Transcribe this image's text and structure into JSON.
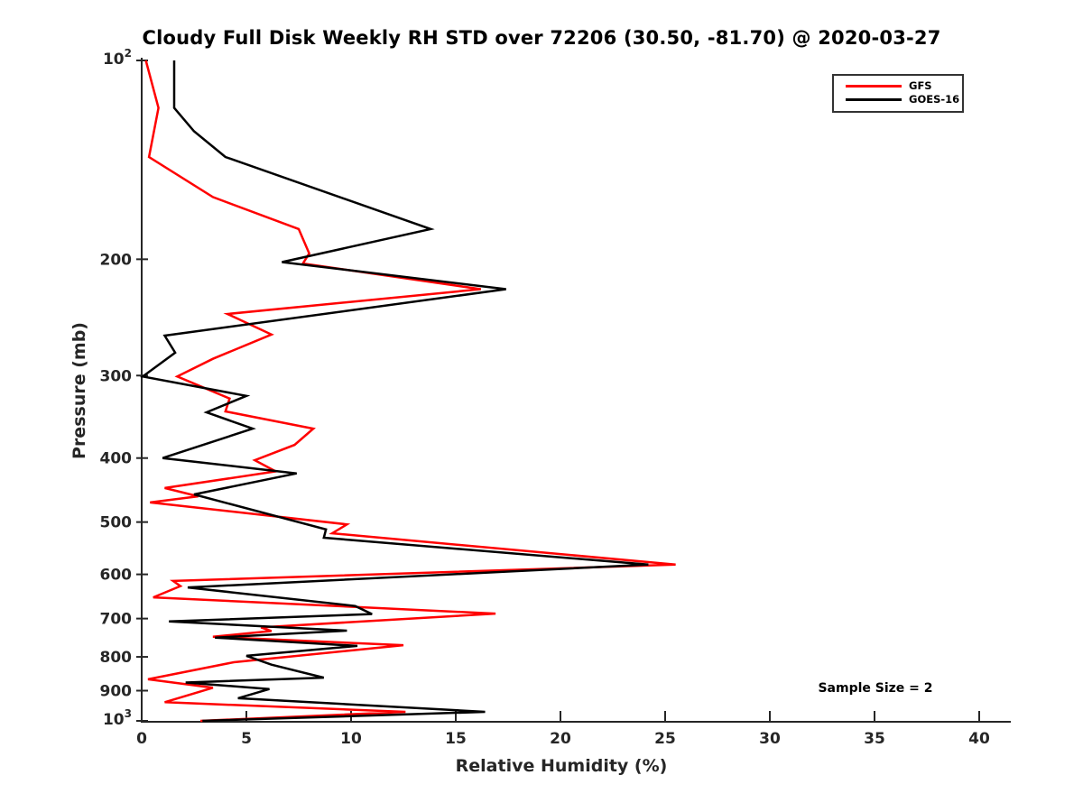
{
  "chart_data": {
    "type": "line",
    "title": "Cloudy Full Disk Weekly RH STD over 72206 (30.50, -81.70) @ 2020-03-27",
    "xlabel": "Relative Humidity (%)",
    "ylabel": "Pressure (mb)",
    "annotation": "Sample Size = 2",
    "sample_size": 2,
    "station": "72206",
    "lat": "30.50",
    "lon": "-81.70",
    "date": "2020-03-27",
    "x_axis": {
      "min": 0,
      "max": 41.5,
      "ticks": [
        0,
        5,
        10,
        15,
        20,
        25,
        30,
        35,
        40
      ],
      "grid": false
    },
    "y_axis": {
      "scale": "log",
      "inverted": true,
      "min": 100,
      "max": 1000,
      "grid": false,
      "ticks": [
        {
          "v": 100,
          "label": "10",
          "exp": "2"
        },
        {
          "v": 200,
          "label": "200"
        },
        {
          "v": 300,
          "label": "300"
        },
        {
          "v": 400,
          "label": "400"
        },
        {
          "v": 500,
          "label": "500"
        },
        {
          "v": 600,
          "label": "600"
        },
        {
          "v": 700,
          "label": "700"
        },
        {
          "v": 800,
          "label": "800"
        },
        {
          "v": 900,
          "label": "900"
        },
        {
          "v": 1000,
          "label": "10",
          "exp": "3"
        }
      ]
    },
    "legend_position": "top-right",
    "axis_color": "#262626",
    "series": [
      {
        "name": "GFS",
        "color": "#ff0000",
        "points_format": "[pressure_mb, rh_percent]",
        "points": [
          [
            100,
            0.2
          ],
          [
            118,
            0.8
          ],
          [
            140,
            0.35
          ],
          [
            161,
            3.4
          ],
          [
            180,
            7.5
          ],
          [
            196,
            8.0
          ],
          [
            203,
            7.7
          ],
          [
            222,
            16.2
          ],
          [
            242,
            4.1
          ],
          [
            260,
            6.2
          ],
          [
            283,
            3.4
          ],
          [
            301,
            1.7
          ],
          [
            325,
            4.2
          ],
          [
            340,
            4.0
          ],
          [
            361,
            8.2
          ],
          [
            382,
            7.3
          ],
          [
            403,
            5.4
          ],
          [
            419,
            6.4
          ],
          [
            444,
            1.1
          ],
          [
            457,
            2.7
          ],
          [
            467,
            0.4
          ],
          [
            504,
            9.8
          ],
          [
            520,
            9.1
          ],
          [
            580,
            25.5
          ],
          [
            614,
            1.5
          ],
          [
            625,
            1.85
          ],
          [
            650,
            0.55
          ],
          [
            688,
            16.9
          ],
          [
            722,
            5.7
          ],
          [
            731,
            6.2
          ],
          [
            746,
            3.4
          ],
          [
            768,
            12.5
          ],
          [
            815,
            4.4
          ],
          [
            865,
            0.3
          ],
          [
            891,
            3.4
          ],
          [
            937,
            1.1
          ],
          [
            969,
            12.6
          ],
          [
            1000,
            2.8
          ]
        ]
      },
      {
        "name": "GOES-16",
        "color": "#000000",
        "points_format": "[pressure_mb, rh_percent]",
        "points": [
          [
            100,
            1.55
          ],
          [
            118,
            1.55
          ],
          [
            128,
            2.5
          ],
          [
            140,
            4.0
          ],
          [
            180,
            13.8
          ],
          [
            202,
            6.7
          ],
          [
            222,
            17.4
          ],
          [
            261,
            1.1
          ],
          [
            277,
            1.6
          ],
          [
            301,
            0.05
          ],
          [
            322,
            5.0
          ],
          [
            341,
            3.1
          ],
          [
            361,
            5.3
          ],
          [
            400,
            1.0
          ],
          [
            422,
            7.4
          ],
          [
            454,
            2.5
          ],
          [
            513,
            8.8
          ],
          [
            528,
            8.7
          ],
          [
            580,
            24.2
          ],
          [
            628,
            2.2
          ],
          [
            670,
            10.2
          ],
          [
            689,
            11.0
          ],
          [
            707,
            1.3
          ],
          [
            730,
            9.8
          ],
          [
            748,
            3.5
          ],
          [
            770,
            10.3
          ],
          [
            797,
            5.0
          ],
          [
            822,
            6.2
          ],
          [
            860,
            8.7
          ],
          [
            875,
            2.1
          ],
          [
            895,
            6.1
          ],
          [
            924,
            4.6
          ],
          [
            969,
            16.4
          ],
          [
            1000,
            2.9
          ]
        ]
      }
    ]
  }
}
